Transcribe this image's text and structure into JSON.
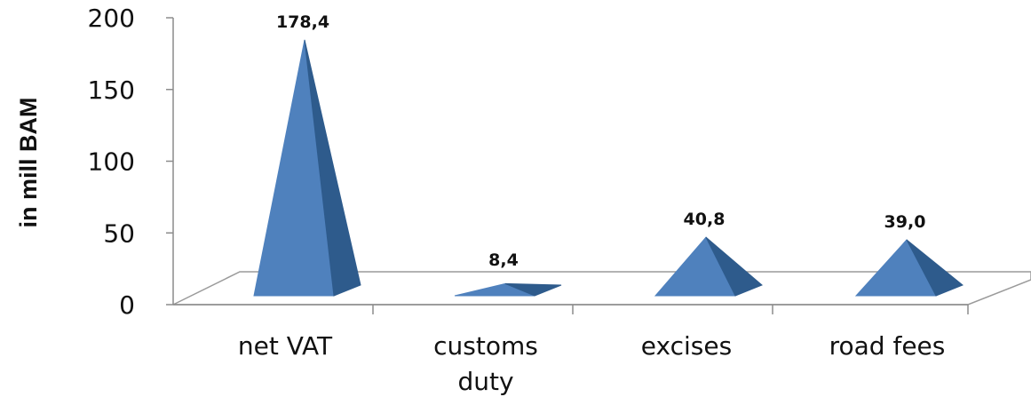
{
  "chart_data": {
    "type": "bar",
    "bar_shape": "pyramid",
    "categories": [
      {
        "line1": "net VAT",
        "line2": ""
      },
      {
        "line1": "customs",
        "line2": "duty"
      },
      {
        "line1": "excises",
        "line2": ""
      },
      {
        "line1": "road fees",
        "line2": ""
      }
    ],
    "values": [
      178.4,
      8.4,
      40.8,
      39.0
    ],
    "value_labels": [
      "178,4",
      "8,4",
      "40,8",
      "39,0"
    ],
    "title": "",
    "xlabel": "",
    "ylabel": "in mill BAM",
    "ylim": [
      0,
      200
    ],
    "yticks": [
      "0",
      "50",
      "100",
      "150",
      "200"
    ],
    "grid": false,
    "legend": "none",
    "colors": {
      "front": "#4f81bd",
      "side": "#2e5b8c",
      "floor_stroke": "#9a9a9a",
      "axis": "#8c8c8c"
    }
  }
}
